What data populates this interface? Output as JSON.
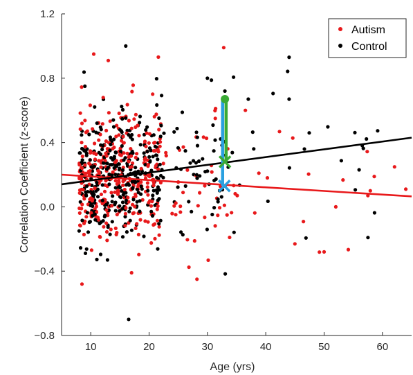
{
  "chart_data": {
    "type": "scatter",
    "xlabel": "Age (yrs)",
    "ylabel": "Correlation Coefficient (z-score)",
    "xlim": [
      5,
      65
    ],
    "ylim": [
      -0.8,
      1.2
    ],
    "xticks": [
      10,
      20,
      30,
      40,
      50,
      60
    ],
    "yticks": [
      -0.8,
      -0.4,
      0.0,
      0.4,
      0.8,
      1.2
    ],
    "ytick_labels": [
      "−0.8",
      "−0.4",
      "0.0",
      "0.4",
      "0.8",
      "1.2"
    ],
    "legend_position": "top-right",
    "legend": [
      {
        "name": "Autism",
        "color": "#e8191b"
      },
      {
        "name": "Control",
        "color": "#000000"
      }
    ],
    "series": [
      {
        "name": "Autism",
        "color": "#e8191b",
        "count": 400,
        "seed": 7,
        "clusters": [
          {
            "n": 340,
            "xmin": 8,
            "xmax": 22,
            "ymean": 0.18,
            "ysd": 0.2
          },
          {
            "n": 45,
            "xmin": 22,
            "xmax": 35,
            "ymean": 0.12,
            "ysd": 0.22
          },
          {
            "n": 15,
            "xmin": 35,
            "xmax": 64,
            "ymean": 0.08,
            "ysd": 0.2
          }
        ],
        "extra_points": [
          [
            8.5,
            -0.48
          ],
          [
            17,
            -0.41
          ],
          [
            28.2,
            -0.45
          ],
          [
            13,
            0.91
          ],
          [
            32.8,
            0.99
          ],
          [
            36.5,
            0.6
          ],
          [
            45,
            -0.23
          ],
          [
            50,
            -0.28
          ],
          [
            52,
            0.0
          ],
          [
            57.5,
            0.07
          ],
          [
            64,
            0.11
          ]
        ],
        "fit": {
          "x": [
            5,
            65
          ],
          "y": [
            0.2,
            0.065
          ]
        }
      },
      {
        "name": "Control",
        "color": "#000000",
        "count": 420,
        "seed": 13,
        "clusters": [
          {
            "n": 330,
            "xmin": 8,
            "xmax": 22,
            "ymean": 0.17,
            "ysd": 0.2
          },
          {
            "n": 60,
            "xmin": 22,
            "xmax": 35,
            "ymean": 0.22,
            "ysd": 0.22
          },
          {
            "n": 20,
            "xmin": 35,
            "xmax": 60,
            "ymean": 0.25,
            "ysd": 0.25
          }
        ],
        "extra_points": [
          [
            16,
            1.0
          ],
          [
            16.5,
            -0.7
          ],
          [
            44,
            0.93
          ],
          [
            33,
            0.72
          ],
          [
            37,
            0.67
          ],
          [
            44,
            0.67
          ],
          [
            56,
            0.23
          ],
          [
            9,
            0.75
          ],
          [
            30,
            0.8
          ]
        ],
        "fit": {
          "x": [
            5,
            65
          ],
          "y": [
            0.14,
            0.43
          ]
        }
      }
    ],
    "annotations": [
      {
        "type": "segment",
        "color": "#2aa0e0",
        "x": [
          32.6,
          32.6
        ],
        "y": [
          0.13,
          0.67
        ]
      },
      {
        "type": "segment",
        "color": "#3aaa35",
        "x": [
          33.2,
          33.2
        ],
        "y": [
          0.28,
          0.67
        ]
      },
      {
        "type": "point",
        "color": "#3aaa35",
        "x": 33.0,
        "y": 0.67
      },
      {
        "type": "x-marker",
        "color": "#2aa0e0",
        "x": 32.9,
        "y": 0.13
      },
      {
        "type": "x-marker",
        "color": "#3aaa35",
        "x": 33.0,
        "y": 0.28
      }
    ]
  }
}
